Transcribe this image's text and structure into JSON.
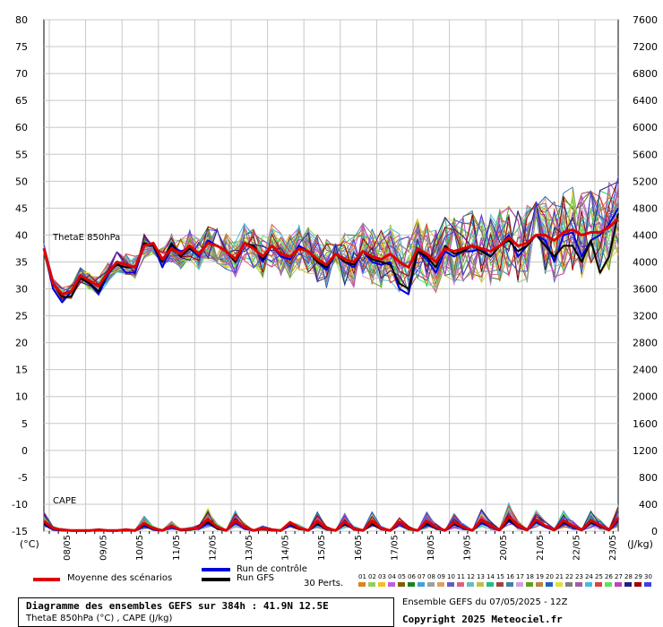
{
  "chart_data": {
    "type": "line",
    "title": "Diagramme des ensembles GEFS sur 384h : 41.9N 12.5E",
    "subtitle": "ThetaE 850hPa (°C) , CAPE (J/kg)",
    "left_axis": {
      "unit_label": "(°C)",
      "ticks": [
        80,
        75,
        70,
        65,
        60,
        55,
        50,
        45,
        40,
        35,
        30,
        25,
        20,
        15,
        10,
        5,
        0,
        -5,
        -10,
        -15
      ],
      "range": [
        -15,
        80
      ]
    },
    "right_axis": {
      "unit_label": "(J/kg)",
      "ticks": [
        7600,
        7200,
        6800,
        6400,
        6000,
        5600,
        5200,
        4800,
        4400,
        4000,
        3600,
        3200,
        2800,
        2400,
        2000,
        1600,
        1200,
        800,
        400,
        0
      ],
      "range": [
        0,
        7600
      ]
    },
    "x_ticks": [
      "08/05",
      "09/05",
      "10/05",
      "11/05",
      "12/05",
      "13/05",
      "14/05",
      "15/05",
      "16/05",
      "17/05",
      "18/05",
      "19/05",
      "20/05",
      "21/05",
      "22/05",
      "23/05"
    ],
    "grid": true,
    "panel_labels": {
      "thetae": "ThetaE 850hPa",
      "cape": "CAPE"
    },
    "series": [
      {
        "name": "Moyenne des scénarios",
        "color": "#e00000",
        "thetae": [
          37.5,
          31,
          29,
          29.5,
          32.5,
          31.5,
          30.5,
          33,
          35,
          34.5,
          34,
          38,
          38.5,
          35.5,
          37.5,
          36.5,
          38,
          36.5,
          38.5,
          38,
          37,
          35.5,
          38.5,
          37.5,
          36,
          38,
          36.5,
          36,
          37.5,
          37,
          35.5,
          34.5,
          36.5,
          35.5,
          35,
          37,
          36,
          35.5,
          36.5,
          35,
          34,
          37.5,
          36.5,
          35,
          37.5,
          37,
          37.5,
          38,
          37.5,
          37,
          38,
          39.5,
          38,
          38.5,
          40,
          40,
          39,
          40.5,
          41,
          40,
          40.5,
          40.5,
          41.5,
          43
        ],
        "cape": [
          150,
          40,
          20,
          10,
          10,
          10,
          20,
          10,
          10,
          20,
          10,
          120,
          40,
          10,
          80,
          20,
          30,
          50,
          180,
          60,
          10,
          160,
          60,
          10,
          40,
          20,
          10,
          130,
          50,
          10,
          150,
          40,
          10,
          140,
          40,
          10,
          150,
          40,
          10,
          140,
          40,
          10,
          150,
          60,
          10,
          140,
          60,
          10,
          170,
          80,
          20,
          220,
          80,
          20,
          170,
          80,
          20,
          160,
          80,
          20,
          160,
          90,
          20,
          200
        ]
      },
      {
        "name": "Run de contrôle",
        "color": "#0000e0",
        "thetae": [
          37.5,
          30,
          27.5,
          29.5,
          32,
          31,
          29,
          32.5,
          35,
          33,
          33,
          38,
          38,
          34,
          38,
          37,
          37.5,
          36,
          39,
          38,
          37,
          35,
          38.5,
          38,
          35,
          38,
          36,
          35.5,
          38,
          37,
          35,
          33.5,
          36.5,
          35,
          34,
          37,
          35,
          34.5,
          35,
          30,
          29,
          37,
          35.5,
          33,
          37,
          36,
          37,
          37,
          37.5,
          36,
          38,
          40,
          36,
          38,
          40,
          39,
          35,
          40,
          40.5,
          36,
          39,
          40,
          42,
          45
        ],
        "cape": [
          100,
          20,
          10,
          5,
          5,
          5,
          10,
          5,
          5,
          10,
          5,
          80,
          20,
          5,
          60,
          10,
          20,
          40,
          120,
          40,
          5,
          120,
          40,
          5,
          30,
          10,
          5,
          90,
          40,
          5,
          100,
          30,
          5,
          100,
          30,
          5,
          100,
          30,
          5,
          110,
          30,
          5,
          100,
          40,
          5,
          100,
          40,
          5,
          120,
          60,
          10,
          150,
          60,
          10,
          130,
          60,
          10,
          120,
          60,
          10,
          120,
          70,
          10,
          150
        ]
      },
      {
        "name": "Run GFS",
        "color": "#000000",
        "thetae": [
          37.5,
          31,
          28.5,
          28.5,
          32,
          31,
          29.5,
          33,
          34.5,
          34,
          34,
          38.5,
          38,
          35,
          38.5,
          36,
          37.5,
          36.5,
          38.5,
          38,
          37,
          35,
          38.5,
          38,
          35.5,
          38,
          36.5,
          36,
          37.5,
          37,
          35,
          34,
          36.5,
          35,
          34.5,
          37,
          35.5,
          35,
          34.5,
          31,
          30,
          37,
          36,
          34,
          38,
          36.5,
          37,
          38,
          37,
          36,
          38,
          39,
          37,
          38,
          40,
          38,
          36,
          38,
          38,
          35,
          39,
          33,
          36,
          44
        ],
        "cape": [
          120,
          30,
          10,
          5,
          5,
          5,
          10,
          5,
          5,
          10,
          5,
          100,
          30,
          5,
          70,
          10,
          20,
          60,
          140,
          40,
          5,
          180,
          50,
          5,
          30,
          10,
          5,
          110,
          40,
          5,
          120,
          30,
          5,
          120,
          30,
          5,
          110,
          30,
          5,
          130,
          30,
          5,
          120,
          50,
          5,
          120,
          50,
          5,
          160,
          70,
          10,
          180,
          70,
          10,
          150,
          70,
          10,
          140,
          70,
          10,
          140,
          80,
          10,
          180
        ]
      }
    ]
  },
  "legend": {
    "mean": "Moyenne des scénarios",
    "control": "Run de contrôle",
    "gfs": "Run GFS",
    "perts_label": "30 Perts.",
    "pert_numbers": [
      "01",
      "02",
      "03",
      "04",
      "05",
      "06",
      "07",
      "08",
      "09",
      "10",
      "11",
      "12",
      "13",
      "14",
      "15",
      "16",
      "17",
      "18",
      "19",
      "20",
      "21",
      "22",
      "23",
      "24",
      "25",
      "26",
      "27",
      "28",
      "29",
      "30"
    ],
    "pert_colors": [
      "#e08020",
      "#90d060",
      "#f0c020",
      "#c060e0",
      "#806000",
      "#208020",
      "#40a0e0",
      "#a0a0a0",
      "#e0a060",
      "#6060c0",
      "#e06080",
      "#60c0c0",
      "#c0c040",
      "#20c080",
      "#a04040",
      "#4080a0",
      "#d0a0e0",
      "#60a020",
      "#c08040",
      "#2060c0",
      "#e0e040",
      "#808080",
      "#a060a0",
      "#40c0e0",
      "#e04040",
      "#60e060",
      "#c040c0",
      "#202080",
      "#a00000",
      "#4040e0"
    ]
  },
  "footer": {
    "title": "Diagramme des ensembles GEFS sur 384h : 41.9N 12.5E",
    "subtitle": "ThetaE 850hPa (°C) , CAPE (J/kg)",
    "run": "Ensemble GEFS du 07/05/2025 - 12Z",
    "copyright": "Copyright 2025 Meteociel.fr"
  }
}
